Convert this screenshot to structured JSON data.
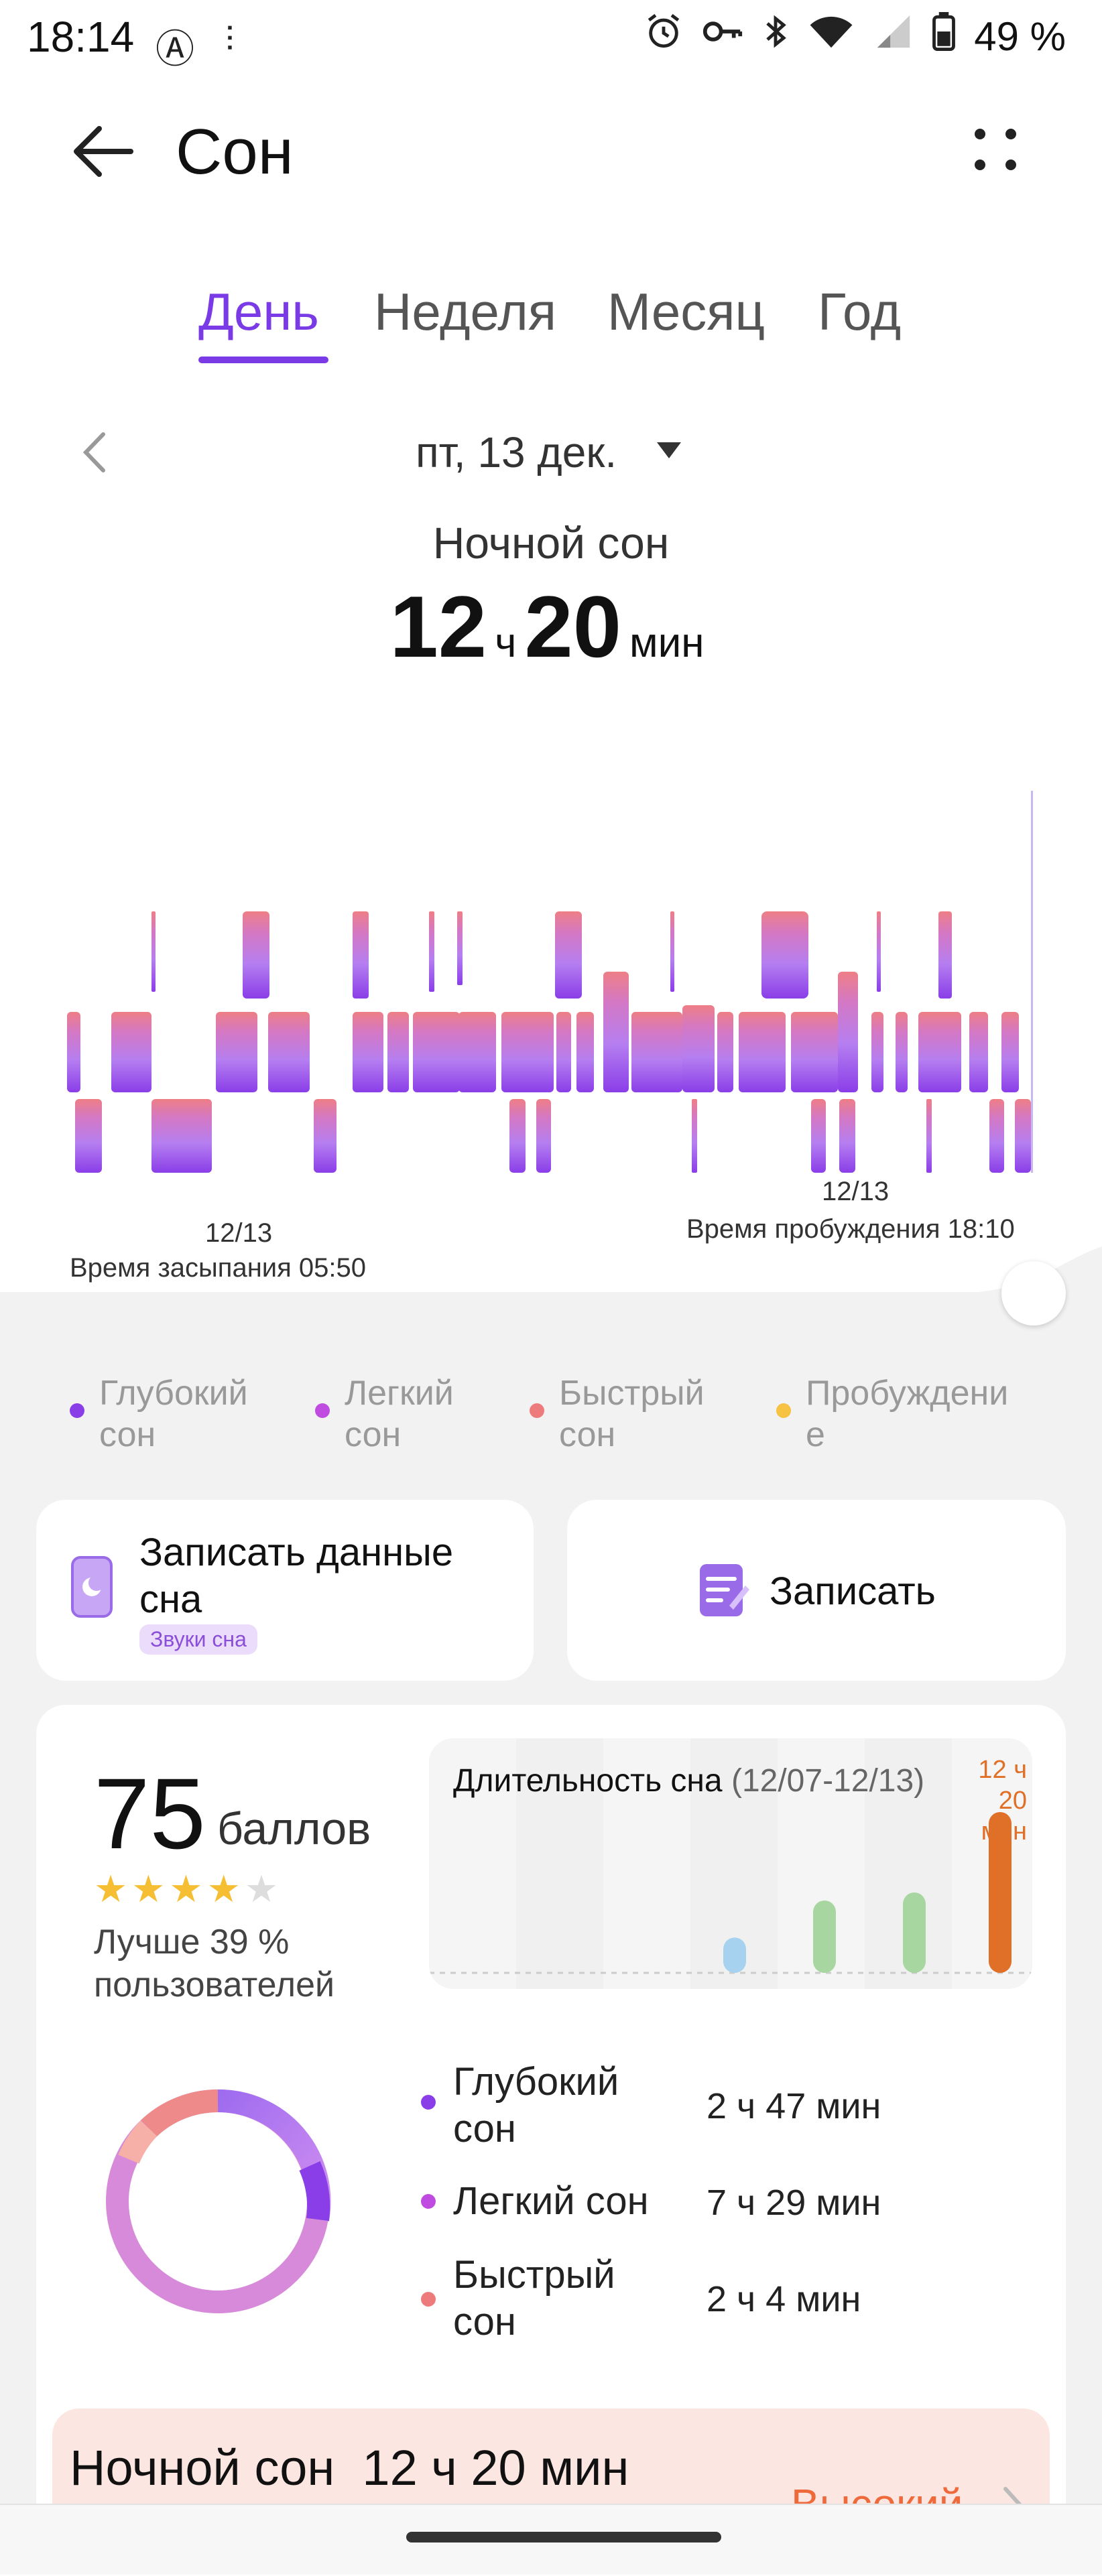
{
  "status_bar": {
    "time": "18:14",
    "battery": "49 %",
    "icons": [
      "alarm-icon",
      "key-icon",
      "bluetooth-icon",
      "wifi-icon",
      "signal-icon",
      "battery-icon"
    ]
  },
  "header": {
    "title": "Сон"
  },
  "tabs": [
    {
      "label": "День",
      "active": true
    },
    {
      "label": "Неделя",
      "active": false
    },
    {
      "label": "Месяц",
      "active": false
    },
    {
      "label": "Год",
      "active": false
    }
  ],
  "date": "пт, 13 дек.",
  "summary": {
    "label": "Ночной сон",
    "hours": "12",
    "hours_unit": "ч",
    "minutes": "20",
    "minutes_unit": "мин"
  },
  "hypnogram": {
    "end_date": "12/13",
    "end_text": "Время пробуждения 18:10",
    "start_date": "12/13",
    "start_text": "Время засыпания 05:50"
  },
  "legend": [
    {
      "label": "Глубокий сон",
      "color": "#8a3ee8"
    },
    {
      "label": "Легкий сон",
      "color": "#c04be0"
    },
    {
      "label": "Быстрый сон",
      "color": "#ee7b7b"
    },
    {
      "label": "Пробуждение",
      "color": "#f5c242"
    }
  ],
  "record_card": {
    "text": "Записать данные сна",
    "chip": "Звуки сна"
  },
  "write_card": {
    "text": "Записать"
  },
  "score": {
    "value": "75",
    "unit": "баллов",
    "stars_filled": 4,
    "stars_total": 5,
    "better": "Лучше 39 % пользователей"
  },
  "mini_chart": {
    "title": "Длительность сна",
    "range": "(12/07-12/13)",
    "value": "12 ч 20 мин",
    "bars": [
      {
        "value": 0.22,
        "color": "#a7d2ef"
      },
      {
        "value": 0.45,
        "color": "#a8d6a0"
      },
      {
        "value": 0.5,
        "color": "#a8d6a0"
      },
      {
        "value": 1.0,
        "color": "#e07028"
      }
    ]
  },
  "stages": [
    {
      "name": "Глубокий сон",
      "value": "2 ч 47 мин",
      "color": "#8a3ee8"
    },
    {
      "name": "Легкий сон",
      "value": "7 ч 29 мин",
      "color": "#c04be0"
    },
    {
      "name": "Быстрый сон",
      "value": "2 ч 4 мин",
      "color": "#ee7b7b"
    }
  ],
  "night_card": {
    "text": "Ночной сон  12 ч 20 мин",
    "level": "Высокий"
  }
}
